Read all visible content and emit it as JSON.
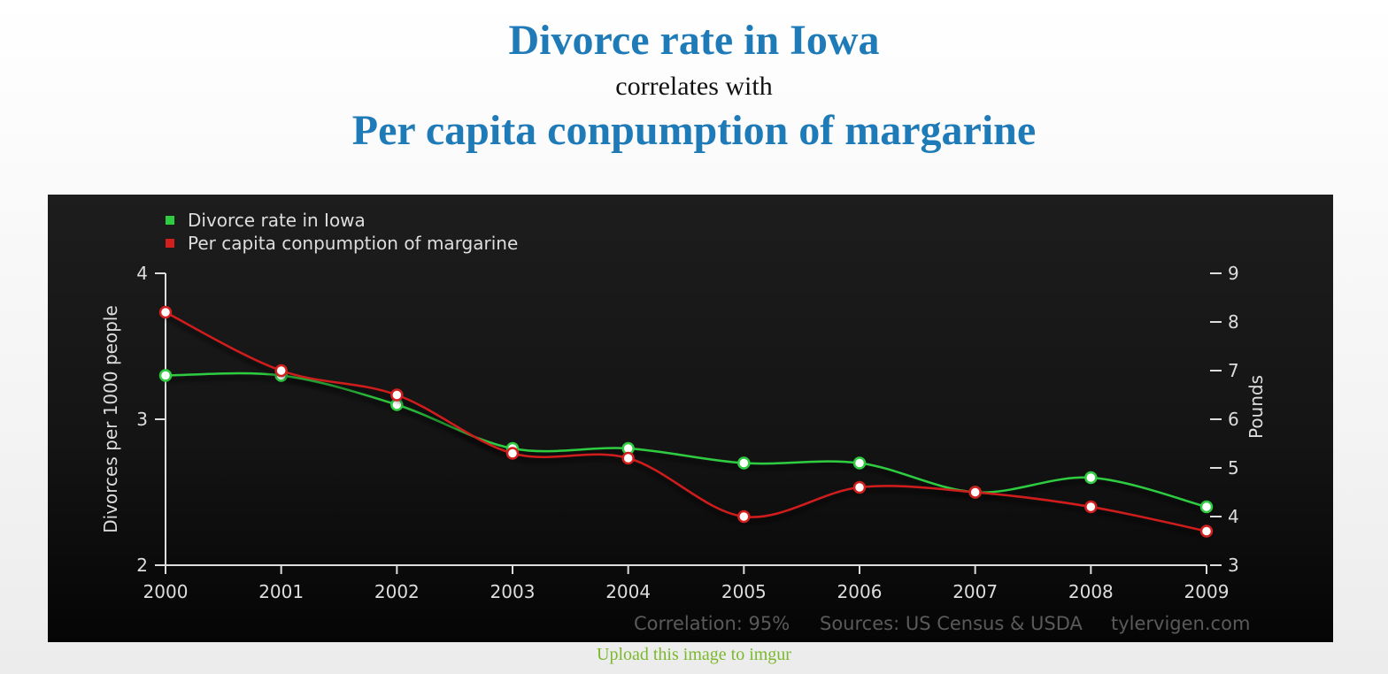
{
  "header": {
    "title": "Divorce rate in Iowa",
    "connector": "correlates with",
    "subtitle": "Per capita conpumption of margarine"
  },
  "footer_link": "Upload this image to imgur",
  "chart_data": {
    "type": "line",
    "x": [
      "2000",
      "2001",
      "2002",
      "2003",
      "2004",
      "2005",
      "2006",
      "2007",
      "2008",
      "2009"
    ],
    "series": [
      {
        "name": "Divorce rate in Iowa",
        "axis": "left",
        "color": "#2ecc40",
        "values": [
          3.3,
          3.3,
          3.1,
          2.8,
          2.8,
          2.7,
          2.7,
          2.5,
          2.6,
          2.4
        ]
      },
      {
        "name": "Per capita conpumption of margarine",
        "axis": "right",
        "color": "#d11f1f",
        "values": [
          8.2,
          7.0,
          6.5,
          5.3,
          5.2,
          4.0,
          4.6,
          4.5,
          4.2,
          3.7
        ]
      }
    ],
    "ylabel": "Divorces per 1000 people",
    "ylim": [
      2,
      4
    ],
    "yticks": [
      "2",
      "3",
      "4"
    ],
    "y2label": "Pounds",
    "y2lim": [
      3,
      9
    ],
    "y2ticks": [
      "3",
      "4",
      "5",
      "6",
      "7",
      "8",
      "9"
    ],
    "legend_placement": "top-left",
    "grid": false,
    "footer": {
      "correlation": "Correlation: 95%",
      "sources": "Sources: US Census & USDA",
      "site": "tylervigen.com"
    }
  },
  "colors": {
    "title": "#1f7bb8",
    "link": "#7cb82f",
    "panel_background": "#141414",
    "axis": "#dddddd"
  }
}
